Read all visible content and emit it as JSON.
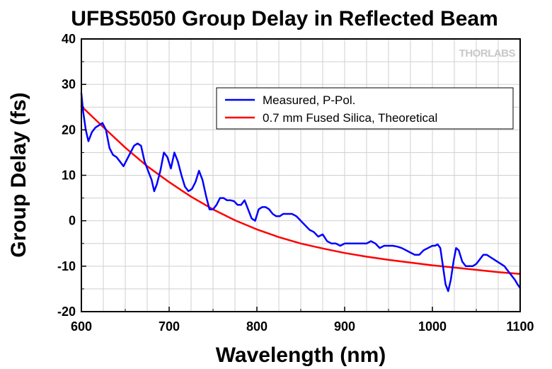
{
  "chart_data": {
    "type": "line",
    "title": "UFBS5050 Group Delay in Reflected Beam",
    "xlabel": "Wavelength (nm)",
    "ylabel": "Group Delay (fs)",
    "xlim": [
      600,
      1100
    ],
    "ylim": [
      -20,
      40
    ],
    "xticks": [
      600,
      700,
      800,
      900,
      1000,
      1100
    ],
    "yticks": [
      -20,
      -10,
      0,
      10,
      20,
      30,
      40
    ],
    "grid": true,
    "legend_position": "top-right",
    "watermark": "THORLABS",
    "series": [
      {
        "name": "Measured, P-Pol.",
        "color": "#0000ff",
        "x": [
          600,
          602,
          605,
          608,
          612,
          616,
          620,
          624,
          628,
          632,
          636,
          640,
          644,
          648,
          652,
          656,
          660,
          664,
          668,
          672,
          676,
          680,
          683,
          686,
          690,
          694,
          698,
          702,
          706,
          710,
          714,
          718,
          722,
          726,
          730,
          734,
          738,
          742,
          746,
          750,
          754,
          758,
          762,
          766,
          770,
          774,
          778,
          782,
          786,
          790,
          794,
          798,
          802,
          806,
          810,
          814,
          818,
          822,
          826,
          830,
          835,
          840,
          845,
          850,
          855,
          860,
          865,
          870,
          875,
          880,
          885,
          890,
          895,
          900,
          910,
          920,
          925,
          930,
          935,
          940,
          945,
          950,
          955,
          960,
          965,
          970,
          975,
          980,
          985,
          990,
          995,
          1000,
          1003,
          1006,
          1009,
          1012,
          1015,
          1018,
          1021,
          1024,
          1027,
          1030,
          1034,
          1038,
          1042,
          1046,
          1050,
          1054,
          1058,
          1062,
          1066,
          1070,
          1074,
          1078,
          1082,
          1086,
          1090,
          1094,
          1097,
          1100
        ],
        "y": [
          28,
          24,
          20,
          17.5,
          19.5,
          20.5,
          21,
          21.5,
          20,
          16,
          14.5,
          14,
          13,
          12,
          13.5,
          15,
          16.5,
          17,
          16.5,
          13,
          11,
          9,
          6.5,
          8,
          11,
          15,
          14,
          11.5,
          15,
          13,
          10,
          7.5,
          6.5,
          7,
          8.5,
          11,
          9,
          5.5,
          2.5,
          2.5,
          3.5,
          5,
          5,
          4.5,
          4.5,
          4.3,
          3.5,
          3.5,
          4.5,
          2.5,
          0.5,
          0,
          2.5,
          3,
          3,
          2.5,
          1.5,
          1,
          1,
          1.5,
          1.5,
          1.5,
          1,
          0,
          -1,
          -2,
          -2.5,
          -3.5,
          -3,
          -4.5,
          -5,
          -5,
          -5.5,
          -5,
          -5,
          -5,
          -5,
          -4.5,
          -5,
          -6,
          -5.5,
          -5.5,
          -5.5,
          -5.7,
          -6,
          -6.5,
          -7,
          -7.5,
          -7.5,
          -6.5,
          -6,
          -5.5,
          -5.5,
          -5.2,
          -6,
          -10,
          -14,
          -15.5,
          -13,
          -9,
          -6,
          -6.5,
          -9,
          -10,
          -10,
          -10,
          -9.5,
          -8.5,
          -7.5,
          -7.5,
          -8,
          -8.5,
          -9,
          -9.5,
          -10,
          -11,
          -12,
          -13,
          -14,
          -14.8
        ]
      },
      {
        "name": "0.7 mm Fused Silica, Theoretical",
        "color": "#ff0000",
        "x": [
          600,
          625,
          650,
          675,
          700,
          725,
          750,
          775,
          800,
          825,
          850,
          875,
          900,
          925,
          950,
          975,
          1000,
          1025,
          1050,
          1075,
          1100
        ],
        "y": [
          25.2,
          20.6,
          16.1,
          12.0,
          8.5,
          5.3,
          2.5,
          0.1,
          -1.9,
          -3.6,
          -5.0,
          -6.1,
          -7.1,
          -7.9,
          -8.6,
          -9.2,
          -9.8,
          -10.3,
          -10.8,
          -11.3,
          -11.7
        ]
      }
    ]
  }
}
